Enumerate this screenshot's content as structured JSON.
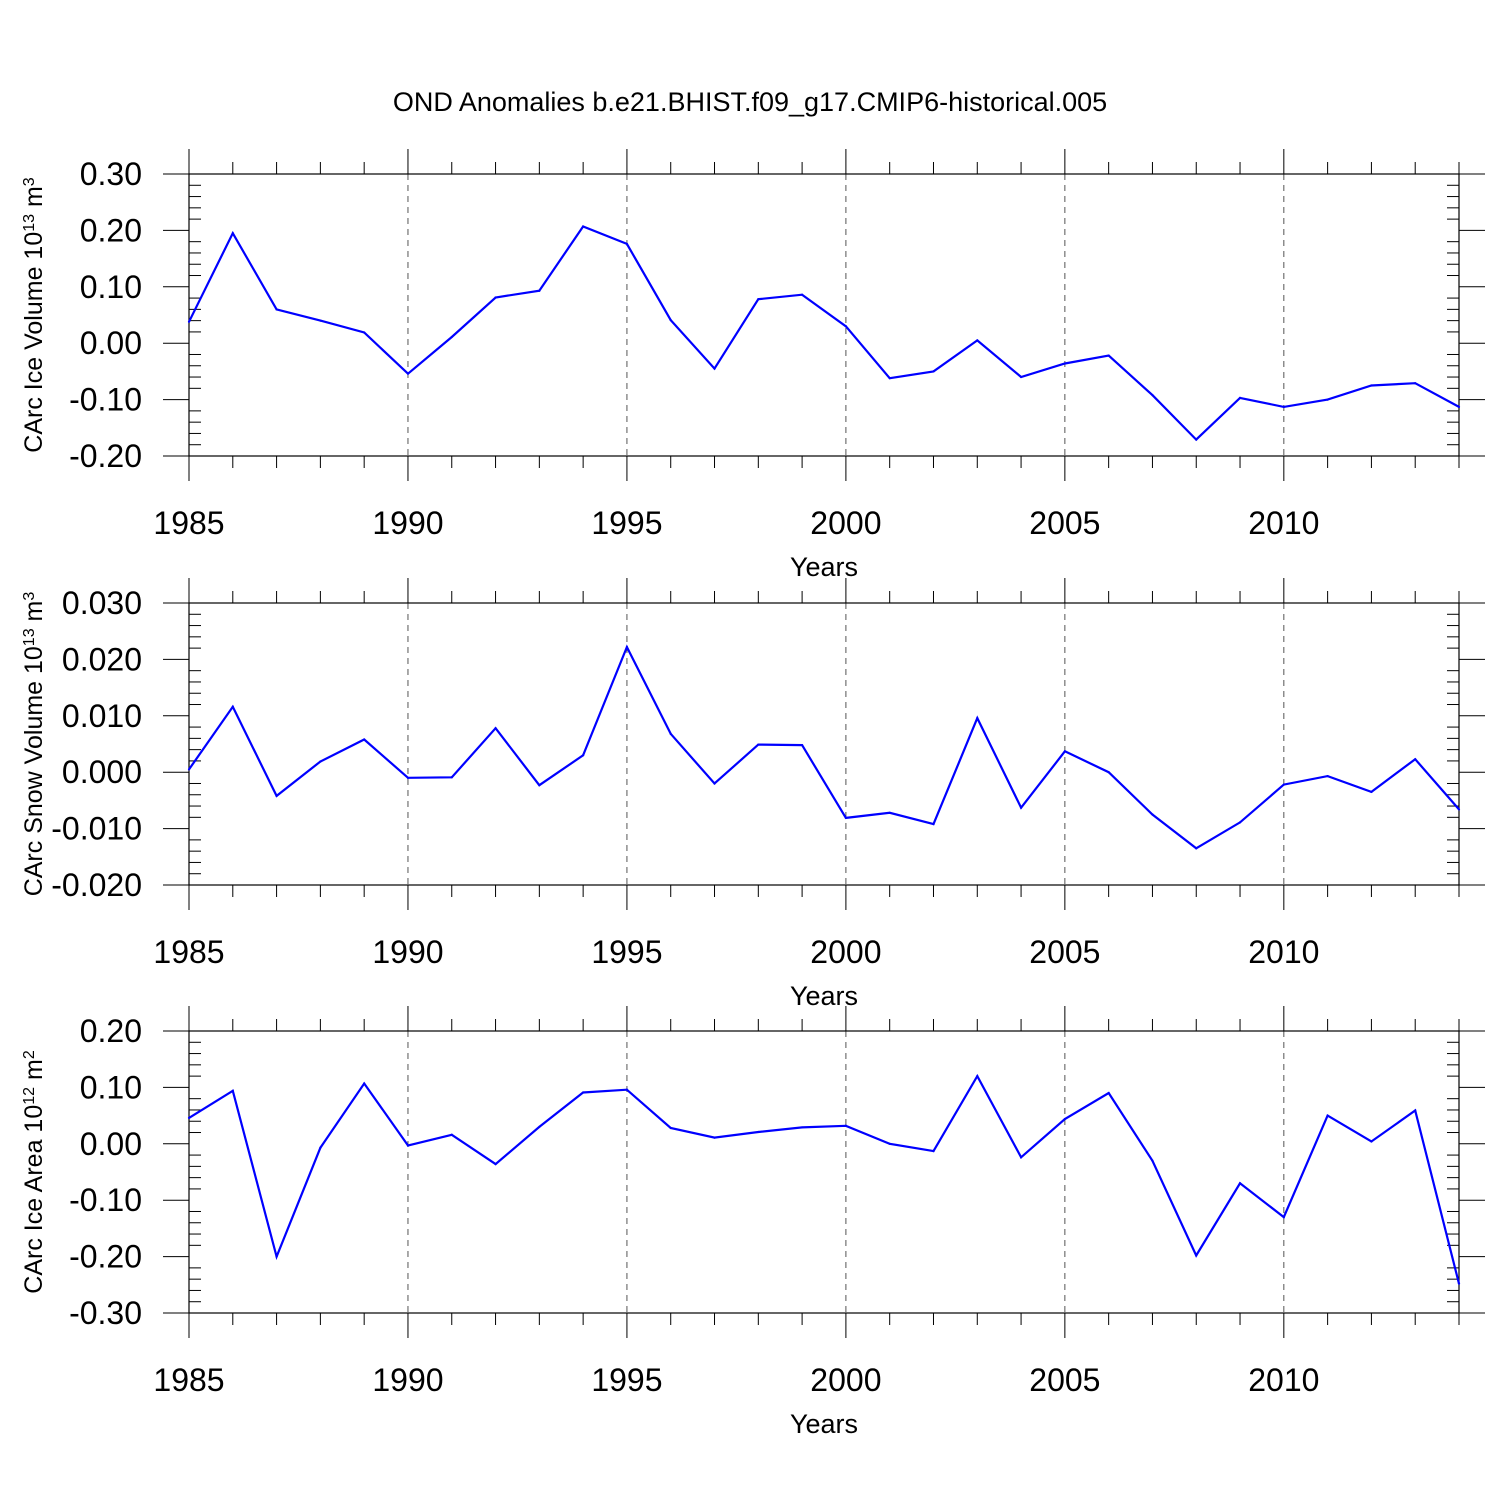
{
  "figure_title": "OND Anomalies b.e21.BHIST.f09_g17.CMIP6-historical.005",
  "series_color": "#0000ff",
  "chart_data": [
    {
      "type": "line",
      "xlabel": "Years",
      "ylabel": {
        "text": "CArc Ice Volume 10",
        "sup": "13",
        "unit": " m",
        "unit_sup": "3"
      },
      "xlim": [
        1985,
        2014
      ],
      "ylim": [
        -0.2,
        0.3
      ],
      "xticks": [
        1985,
        1990,
        1995,
        2000,
        2005,
        2010
      ],
      "yticks": [
        -0.2,
        -0.1,
        0.0,
        0.1,
        0.2,
        0.3
      ],
      "ytick_labels": [
        "-0.20",
        "-0.10",
        "0.00",
        "0.10",
        "0.20",
        "0.30"
      ],
      "grid": "vertical dashed at major x ticks",
      "x": [
        1985,
        1986,
        1987,
        1988,
        1989,
        1990,
        1991,
        1992,
        1993,
        1994,
        1995,
        1996,
        1997,
        1998,
        1999,
        2000,
        2001,
        2002,
        2003,
        2004,
        2005,
        2006,
        2007,
        2008,
        2009,
        2010,
        2011,
        2012,
        2013,
        2014
      ],
      "y": [
        0.038,
        0.195,
        0.06,
        0.04,
        0.019,
        -0.054,
        0.011,
        0.081,
        0.093,
        0.207,
        0.176,
        0.041,
        -0.045,
        0.078,
        0.086,
        0.03,
        -0.062,
        -0.05,
        0.005,
        -0.06,
        -0.036,
        -0.022,
        -0.092,
        -0.171,
        -0.097,
        -0.113,
        -0.1,
        -0.075,
        -0.071,
        -0.113
      ]
    },
    {
      "type": "line",
      "xlabel": "Years",
      "ylabel": {
        "text": "CArc Snow Volume 10",
        "sup": "13",
        "unit": " m",
        "unit_sup": "3"
      },
      "xlim": [
        1985,
        2014
      ],
      "ylim": [
        -0.02,
        0.03
      ],
      "xticks": [
        1985,
        1990,
        1995,
        2000,
        2005,
        2010
      ],
      "yticks": [
        -0.02,
        -0.01,
        0.0,
        0.01,
        0.02,
        0.03
      ],
      "ytick_labels": [
        "-0.020",
        "-0.010",
        "0.000",
        "0.010",
        "0.020",
        "0.030"
      ],
      "grid": "vertical dashed at major x ticks",
      "x": [
        1985,
        1986,
        1987,
        1988,
        1989,
        1990,
        1991,
        1992,
        1993,
        1994,
        1995,
        1996,
        1997,
        1998,
        1999,
        2000,
        2001,
        2002,
        2003,
        2004,
        2005,
        2006,
        2007,
        2008,
        2009,
        2010,
        2011,
        2012,
        2013,
        2014
      ],
      "y": [
        0.0005,
        0.0116,
        -0.0042,
        0.0019,
        0.0058,
        -0.001,
        -0.0009,
        0.0078,
        -0.0023,
        0.003,
        0.0222,
        0.0068,
        -0.002,
        0.0049,
        0.0048,
        -0.0081,
        -0.0072,
        -0.0092,
        0.0096,
        -0.0063,
        0.0037,
        0.0,
        -0.0075,
        -0.0135,
        -0.0089,
        -0.0022,
        -0.0007,
        -0.0035,
        0.0023,
        -0.0066
      ]
    },
    {
      "type": "line",
      "xlabel": "Years",
      "ylabel": {
        "text": "CArc Ice Area 10",
        "sup": "12",
        "unit": " m",
        "unit_sup": "2"
      },
      "xlim": [
        1985,
        2014
      ],
      "ylim": [
        -0.3,
        0.2
      ],
      "xticks": [
        1985,
        1990,
        1995,
        2000,
        2005,
        2010
      ],
      "yticks": [
        -0.3,
        -0.2,
        -0.1,
        0.0,
        0.1,
        0.2
      ],
      "ytick_labels": [
        "-0.30",
        "-0.20",
        "-0.10",
        "0.00",
        "0.10",
        "0.20"
      ],
      "grid": "vertical dashed at major x ticks",
      "x": [
        1985,
        1986,
        1987,
        1988,
        1989,
        1990,
        1991,
        1992,
        1993,
        1994,
        1995,
        1996,
        1997,
        1998,
        1999,
        2000,
        2001,
        2002,
        2003,
        2004,
        2005,
        2006,
        2007,
        2008,
        2009,
        2010,
        2011,
        2012,
        2013,
        2014
      ],
      "y": [
        0.046,
        0.094,
        -0.2,
        -0.007,
        0.107,
        -0.003,
        0.016,
        -0.036,
        0.03,
        0.091,
        0.096,
        0.028,
        0.011,
        0.021,
        0.029,
        0.032,
        0.0,
        -0.013,
        0.12,
        -0.024,
        0.044,
        0.09,
        -0.03,
        -0.198,
        -0.07,
        -0.13,
        0.05,
        0.004,
        0.059,
        -0.248
      ]
    }
  ]
}
